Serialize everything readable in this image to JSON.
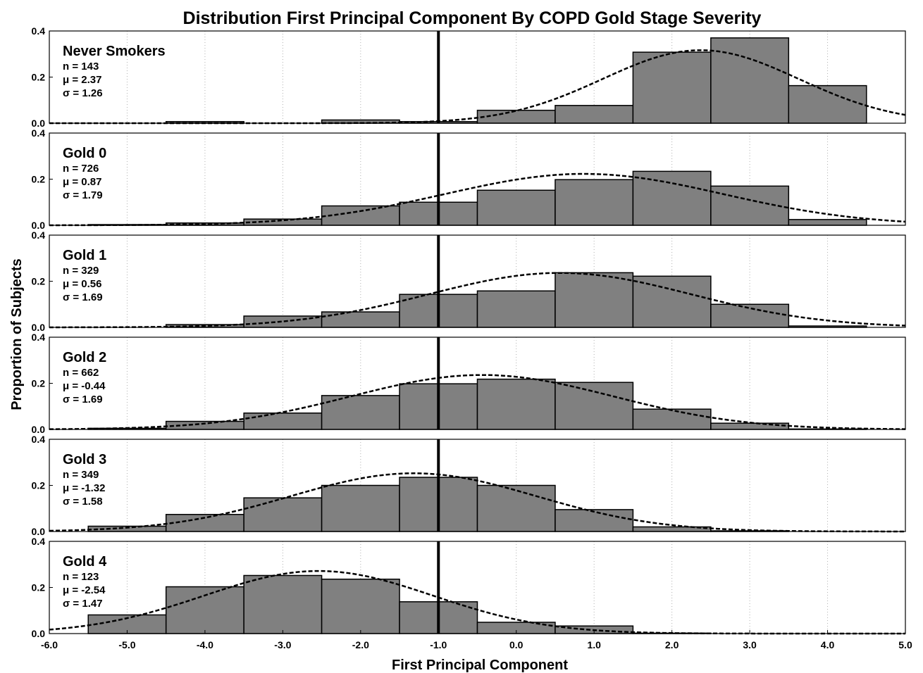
{
  "chart_data": {
    "type": "bar",
    "title": "Distribution First Principal Component By COPD Gold Stage Severity",
    "xlabel": "First Principal Component",
    "ylabel": "Proportion  of  Subjects",
    "xlim": [
      -6.0,
      5.0
    ],
    "ylim": [
      0,
      0.4
    ],
    "x_ticks": [
      "-6.0",
      "-5.0",
      "-4.0",
      "-3.0",
      "-2.0",
      "-1.0",
      "0.0",
      "1.0",
      "2.0",
      "3.0",
      "4.0",
      "5.0"
    ],
    "y_ticks": [
      "0.0",
      "0.2",
      "0.4"
    ],
    "grid": "vertical dotted",
    "reference_line_x": -1.0,
    "bin_edges": [
      -5.5,
      -4.5,
      -3.5,
      -2.5,
      -1.5,
      -0.5,
      0.5,
      1.5,
      2.5,
      3.5,
      4.5
    ],
    "bar_color": "#808080",
    "panels": [
      {
        "name": "Never Smokers",
        "n_text": "n =  143",
        "mu_text": "μ =  2.37",
        "sigma_text": "σ =  1.26",
        "mean": 2.37,
        "sd": 1.26,
        "values": [
          0.0,
          0.007,
          0.0,
          0.014,
          0.007,
          0.056,
          0.077,
          0.308,
          0.37,
          0.163
        ]
      },
      {
        "name": "Gold 0",
        "n_text": "n =  726",
        "mu_text": "μ =  0.87",
        "sigma_text": "σ =  1.79",
        "mean": 0.87,
        "sd": 1.79,
        "values": [
          0.003,
          0.01,
          0.027,
          0.084,
          0.1,
          0.152,
          0.198,
          0.234,
          0.17,
          0.025
        ]
      },
      {
        "name": "Gold 1",
        "n_text": "n =  329",
        "mu_text": "μ =  0.56",
        "sigma_text": "σ =  1.69",
        "mean": 0.56,
        "sd": 1.69,
        "values": [
          0.0,
          0.012,
          0.049,
          0.067,
          0.143,
          0.158,
          0.237,
          0.222,
          0.1,
          0.006
        ]
      },
      {
        "name": "Gold 2",
        "n_text": "n =  662",
        "mu_text": "μ = -0.44",
        "sigma_text": "σ =  1.69",
        "mean": -0.44,
        "sd": 1.69,
        "values": [
          0.005,
          0.035,
          0.071,
          0.147,
          0.198,
          0.218,
          0.204,
          0.088,
          0.027,
          0.002
        ]
      },
      {
        "name": "Gold 3",
        "n_text": "n =  349",
        "mu_text": "μ = -1.32",
        "sigma_text": "σ =  1.58",
        "mean": -1.32,
        "sd": 1.58,
        "values": [
          0.023,
          0.074,
          0.146,
          0.2,
          0.235,
          0.2,
          0.095,
          0.02,
          0.003,
          0.0
        ]
      },
      {
        "name": "Gold 4",
        "n_text": "n =  123",
        "mu_text": "μ = -2.54",
        "sigma_text": "σ =  1.47",
        "mean": -2.54,
        "sd": 1.47,
        "values": [
          0.081,
          0.203,
          0.252,
          0.236,
          0.138,
          0.049,
          0.033,
          0.002,
          0.0,
          0.0
        ]
      }
    ]
  }
}
